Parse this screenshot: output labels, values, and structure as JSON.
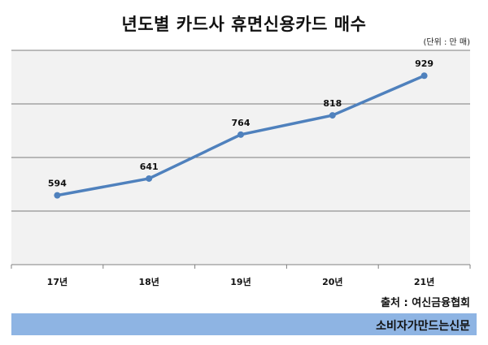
{
  "chart_data": {
    "type": "line",
    "title": "년도별 카드사 휴면신용카드 매수",
    "unit_label": "(단위 : 만 매)",
    "categories": [
      "17년",
      "18년",
      "19년",
      "20년",
      "21년"
    ],
    "series": [
      {
        "values": [
          594,
          641,
          764,
          818,
          929
        ]
      }
    ],
    "ylim": [
      400,
      1000
    ],
    "grid": true,
    "source": "출처 : 여신금융협회",
    "line_color": "#4f81bd",
    "plot_background": "#f2f2f2"
  },
  "footer": {
    "text": "소비자가만드는신문",
    "color": "#8eb4e3"
  }
}
